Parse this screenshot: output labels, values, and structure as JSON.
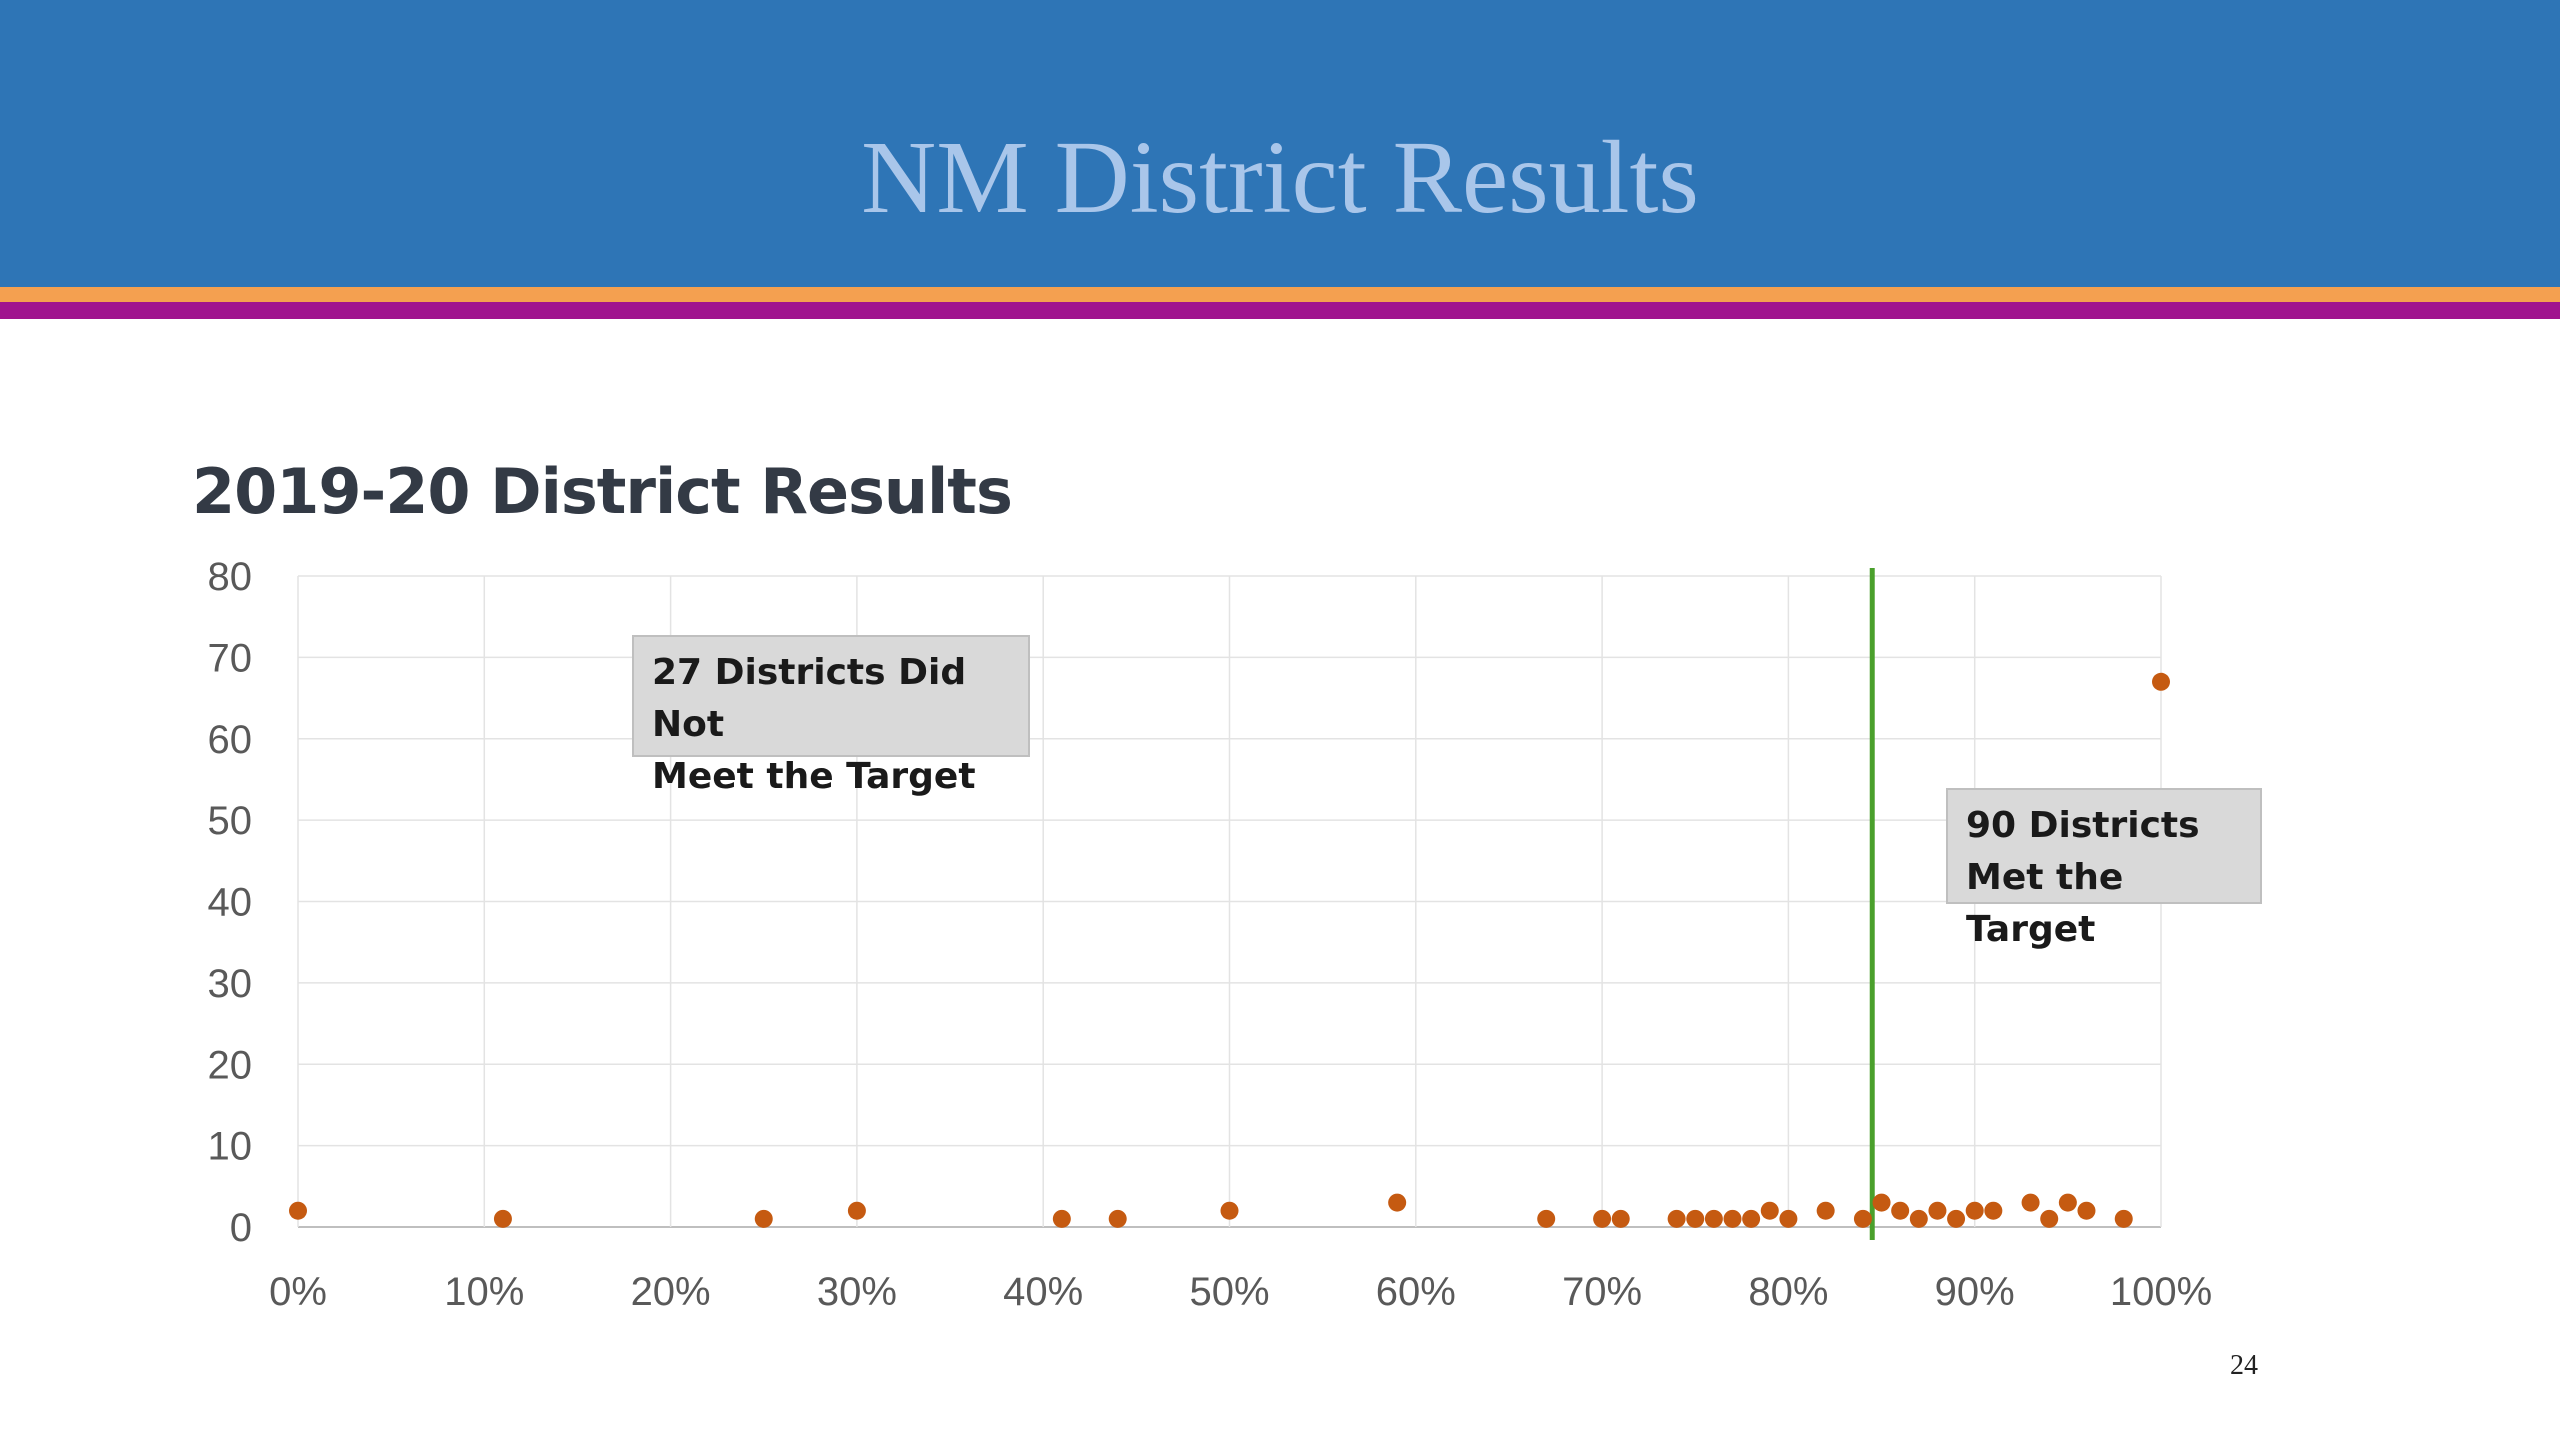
{
  "slide": {
    "title": "NM District Results",
    "page_number": "24",
    "colors": {
      "header_bg": "#2e75b6",
      "title_text": "#a9c6ea",
      "stripe_orange": "#f4a050",
      "stripe_purple": "#a0138e"
    }
  },
  "chart_data": {
    "type": "scatter",
    "title": "2019-20 District Results",
    "xlabel": "",
    "ylabel": "",
    "xlim": [
      0,
      1
    ],
    "ylim": [
      0,
      80
    ],
    "x_ticks": [
      "0%",
      "10%",
      "20%",
      "30%",
      "40%",
      "50%",
      "60%",
      "70%",
      "80%",
      "90%",
      "100%"
    ],
    "y_ticks": [
      "0",
      "10",
      "20",
      "30",
      "40",
      "50",
      "60",
      "70",
      "80"
    ],
    "grid": true,
    "marker_color": "#c55a11",
    "target_line": {
      "x": 0.845,
      "color": "#4aa02c"
    },
    "annotations": [
      {
        "text": "27 Districts Did Not\nMeet the Target"
      },
      {
        "text": "90 Districts\nMet the Target"
      }
    ],
    "points": [
      [
        0.0,
        2
      ],
      [
        0.11,
        1
      ],
      [
        0.25,
        1
      ],
      [
        0.3,
        2
      ],
      [
        0.41,
        1
      ],
      [
        0.44,
        1
      ],
      [
        0.5,
        2
      ],
      [
        0.59,
        3
      ],
      [
        0.67,
        1
      ],
      [
        0.7,
        1
      ],
      [
        0.71,
        1
      ],
      [
        0.74,
        1
      ],
      [
        0.75,
        1
      ],
      [
        0.76,
        1
      ],
      [
        0.77,
        1
      ],
      [
        0.78,
        1
      ],
      [
        0.79,
        2
      ],
      [
        0.8,
        1
      ],
      [
        0.82,
        2
      ],
      [
        0.84,
        1
      ],
      [
        0.85,
        3
      ],
      [
        0.86,
        2
      ],
      [
        0.87,
        1
      ],
      [
        0.88,
        2
      ],
      [
        0.89,
        1
      ],
      [
        0.9,
        2
      ],
      [
        0.91,
        2
      ],
      [
        0.93,
        3
      ],
      [
        0.94,
        1
      ],
      [
        0.95,
        3
      ],
      [
        0.96,
        2
      ],
      [
        0.98,
        1
      ],
      [
        1.0,
        67
      ]
    ]
  }
}
